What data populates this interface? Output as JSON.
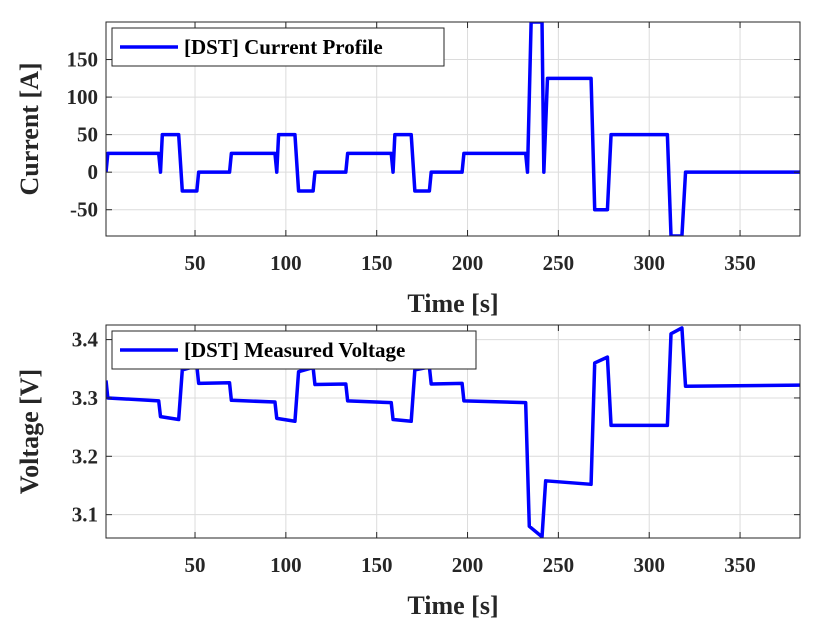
{
  "chart_data": [
    {
      "type": "line",
      "xlabel": "Time [s]",
      "ylabel": "Current [A]",
      "xlim": [
        1,
        383
      ],
      "ylim": [
        -85,
        200
      ],
      "xticks": [
        50,
        100,
        150,
        200,
        250,
        300,
        350
      ],
      "yticks": [
        -50,
        0,
        50,
        100,
        150
      ],
      "grid": true,
      "legend": "top-left",
      "series": [
        {
          "name": "[DST] Current Profile",
          "color": "#0000ff",
          "points": [
            [
              1,
              0
            ],
            [
              2,
              25
            ],
            [
              30,
              25
            ],
            [
              31,
              0
            ],
            [
              32,
              50
            ],
            [
              41,
              50
            ],
            [
              43,
              -25
            ],
            [
              51,
              -25
            ],
            [
              52,
              0
            ],
            [
              69,
              0
            ],
            [
              70,
              25
            ],
            [
              94,
              25
            ],
            [
              95,
              0
            ],
            [
              96,
              50
            ],
            [
              105,
              50
            ],
            [
              107,
              -25
            ],
            [
              115,
              -25
            ],
            [
              116,
              0
            ],
            [
              133,
              0
            ],
            [
              134,
              25
            ],
            [
              158,
              25
            ],
            [
              159,
              0
            ],
            [
              160,
              50
            ],
            [
              169,
              50
            ],
            [
              171,
              -25
            ],
            [
              179,
              -25
            ],
            [
              180,
              0
            ],
            [
              197,
              0
            ],
            [
              198,
              25
            ],
            [
              232,
              25
            ],
            [
              233,
              0
            ],
            [
              235,
              200
            ],
            [
              241,
              200
            ],
            [
              242,
              0
            ],
            [
              244,
              125
            ],
            [
              268,
              125
            ],
            [
              270,
              -50
            ],
            [
              277,
              -50
            ],
            [
              279,
              50
            ],
            [
              310,
              50
            ],
            [
              312,
              -85
            ],
            [
              318,
              -85
            ],
            [
              320,
              0
            ],
            [
              383,
              0
            ]
          ]
        }
      ]
    },
    {
      "type": "line",
      "xlabel": "Time [s]",
      "ylabel": "Voltage [V]",
      "xlim": [
        1,
        383
      ],
      "ylim": [
        3.06,
        3.425
      ],
      "xticks": [
        50,
        100,
        150,
        200,
        250,
        300,
        350
      ],
      "yticks": [
        3.1,
        3.2,
        3.3,
        3.4
      ],
      "ytick_labels": [
        "3.1",
        "3.2",
        "3.3",
        "3.4"
      ],
      "grid": true,
      "legend": "top-left",
      "series": [
        {
          "name": "[DST] Measured Voltage",
          "color": "#0000ff",
          "points": [
            [
              1,
              3.33
            ],
            [
              2,
              3.3
            ],
            [
              30,
              3.295
            ],
            [
              31,
              3.268
            ],
            [
              41,
              3.263
            ],
            [
              43,
              3.348
            ],
            [
              51,
              3.355
            ],
            [
              52,
              3.325
            ],
            [
              69,
              3.326
            ],
            [
              70,
              3.296
            ],
            [
              94,
              3.293
            ],
            [
              95,
              3.265
            ],
            [
              105,
              3.26
            ],
            [
              107,
              3.345
            ],
            [
              115,
              3.352
            ],
            [
              116,
              3.323
            ],
            [
              133,
              3.324
            ],
            [
              134,
              3.295
            ],
            [
              158,
              3.292
            ],
            [
              159,
              3.263
            ],
            [
              169,
              3.26
            ],
            [
              171,
              3.348
            ],
            [
              179,
              3.353
            ],
            [
              180,
              3.324
            ],
            [
              197,
              3.325
            ],
            [
              198,
              3.295
            ],
            [
              232,
              3.292
            ],
            [
              234,
              3.08
            ],
            [
              241,
              3.062
            ],
            [
              243,
              3.158
            ],
            [
              268,
              3.152
            ],
            [
              270,
              3.36
            ],
            [
              277,
              3.37
            ],
            [
              279,
              3.253
            ],
            [
              310,
              3.253
            ],
            [
              312,
              3.41
            ],
            [
              318,
              3.42
            ],
            [
              320,
              3.32
            ],
            [
              383,
              3.322
            ]
          ]
        }
      ]
    }
  ]
}
